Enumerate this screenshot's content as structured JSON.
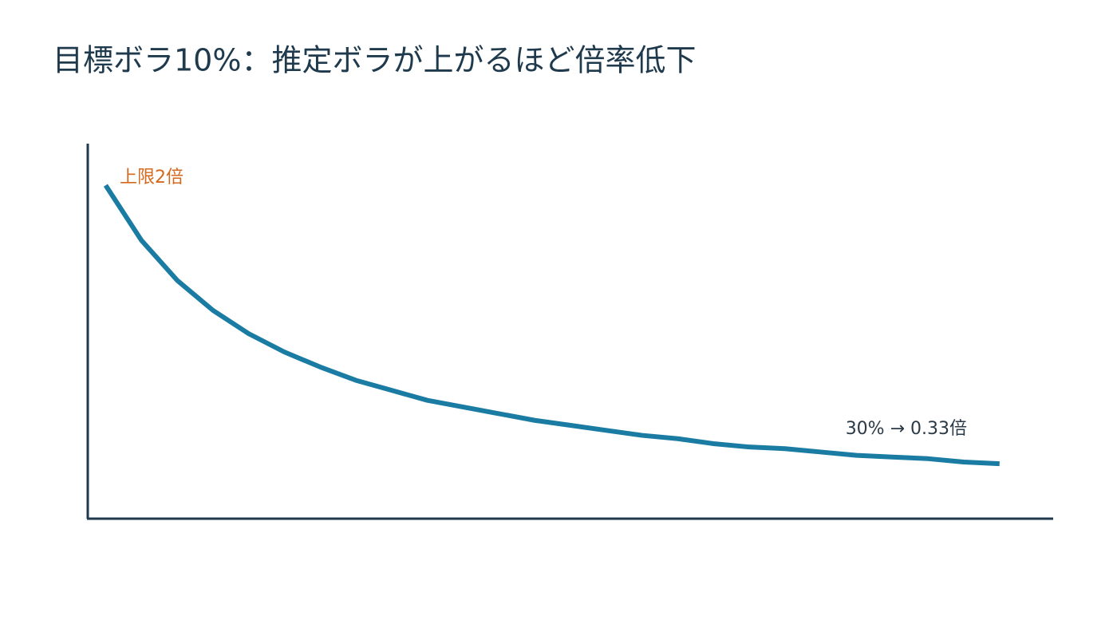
{
  "chart_data": {
    "type": "line",
    "title": "目標ボラ10%：推定ボラが上がるほど倍率低下",
    "x": [
      5,
      6,
      7,
      8,
      9,
      10,
      11,
      12,
      13,
      14,
      15,
      16,
      17,
      18,
      19,
      20,
      21,
      22,
      23,
      24,
      25,
      26,
      27,
      28,
      29,
      30
    ],
    "series": [
      {
        "name": null,
        "color": "#1a7ba3",
        "values": [
          2,
          1.67,
          1.43,
          1.25,
          1.11,
          1,
          0.91,
          0.83,
          0.77,
          0.71,
          0.67,
          0.63,
          0.59,
          0.56,
          0.53,
          0.5,
          0.48,
          0.45,
          0.43,
          0.42,
          0.4,
          0.38,
          0.37,
          0.36,
          0.34,
          0.33
        ]
      }
    ],
    "xlim": [
      4.5,
      31.5
    ],
    "ylim": [
      0,
      2.25
    ],
    "annotations": [
      {
        "text": "上限2倍",
        "color": "#d4691e"
      },
      {
        "text": "30% → 0.33倍",
        "color": "#2b3a47"
      }
    ]
  }
}
